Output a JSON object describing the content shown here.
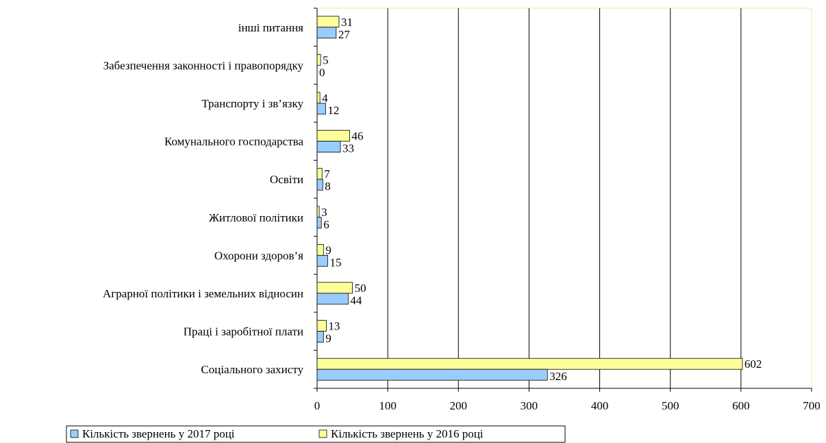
{
  "chart_data": {
    "type": "bar",
    "orientation": "horizontal",
    "categories": [
      "Соціального захисту",
      "Праці і заробітної плати",
      "Аграрної політики і земельних відносин",
      "Охорони здоров’я",
      "Житлової політики",
      "Освіти",
      "Комунального господарства",
      "Транспорту і зв’язку",
      "Забезпечення законності і правопорядку",
      "інші питання"
    ],
    "series": [
      {
        "name": "Кількість звернень у 2017 році",
        "color": "#99ccff",
        "values": [
          326,
          9,
          44,
          15,
          6,
          8,
          33,
          12,
          0,
          27
        ]
      },
      {
        "name": "Кількість звернень у 2016 році",
        "color": "#ffff99",
        "values": [
          602,
          13,
          50,
          9,
          3,
          7,
          46,
          4,
          5,
          31
        ]
      }
    ],
    "xlim": [
      0,
      700
    ],
    "x_ticks": [
      "0",
      "100",
      "200",
      "300",
      "400",
      "500",
      "600",
      "700"
    ],
    "grid": "vertical",
    "legend_position": "bottom"
  }
}
